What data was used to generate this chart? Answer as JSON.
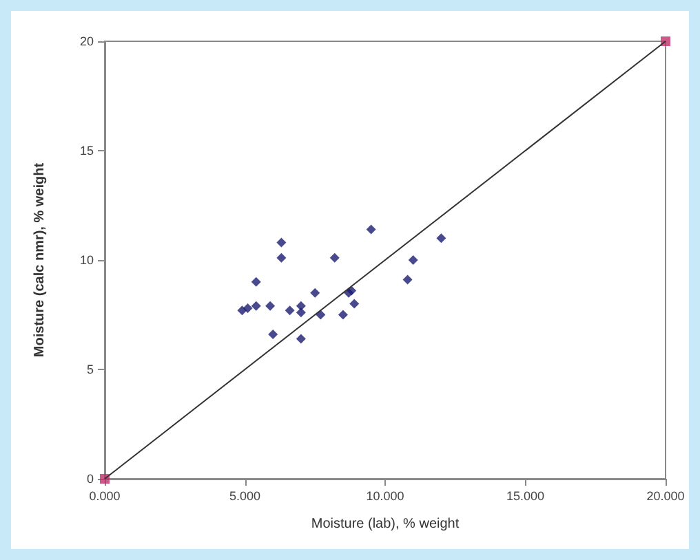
{
  "chart_data": {
    "type": "scatter",
    "xlabel": "Moisture (lab), % weight",
    "ylabel": "Moisture (calc nmr), % weight",
    "xlim": [
      0,
      20
    ],
    "ylim": [
      0,
      20
    ],
    "xticks": [
      {
        "value": 0,
        "label": "0.000"
      },
      {
        "value": 5,
        "label": "5.000"
      },
      {
        "value": 10,
        "label": "10.000"
      },
      {
        "value": 15,
        "label": "15.000"
      },
      {
        "value": 20,
        "label": "20.000"
      }
    ],
    "yticks": [
      0,
      5,
      10,
      15,
      20
    ],
    "grid": false,
    "series": [
      {
        "type": "line",
        "marker": "none",
        "line_style": "solid",
        "color": "#333333",
        "x": [
          0,
          20
        ],
        "values": [
          0,
          20
        ]
      },
      {
        "type": "scatter",
        "marker": "square",
        "color": "#c0306a",
        "x": [
          0,
          20
        ],
        "values": [
          0,
          20
        ]
      },
      {
        "type": "scatter",
        "marker": "diamond",
        "color": "#1c1c72",
        "x": [
          4.9,
          5.1,
          5.4,
          5.4,
          5.9,
          6.0,
          6.3,
          6.3,
          6.6,
          7.0,
          7.0,
          7.0,
          7.5,
          7.7,
          8.2,
          8.5,
          8.8,
          8.9,
          8.7,
          9.5,
          10.8,
          11.0,
          12.0
        ],
        "values": [
          7.7,
          7.8,
          9.0,
          7.9,
          7.9,
          6.6,
          10.8,
          10.1,
          7.7,
          7.9,
          7.6,
          6.4,
          8.5,
          7.5,
          10.1,
          7.5,
          8.6,
          8.0,
          8.5,
          11.4,
          9.1,
          10.0,
          11.0
        ]
      }
    ]
  }
}
